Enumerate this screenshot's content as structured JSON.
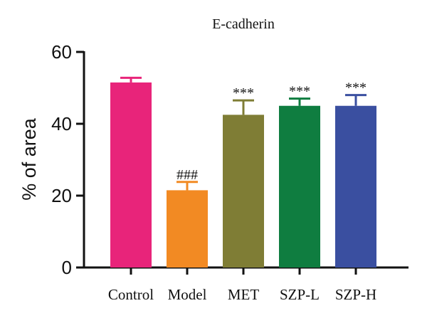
{
  "chart_data": {
    "type": "bar",
    "title": "E-cadherin",
    "xlabel": "",
    "ylabel": "% of area",
    "ylim": [
      0,
      60
    ],
    "yticks": [
      0,
      20,
      40,
      60
    ],
    "categories": [
      "Control",
      "Model",
      "MET",
      "SZP-L",
      "SZP-H"
    ],
    "values": [
      51.5,
      21.5,
      42.5,
      45,
      45
    ],
    "errors": [
      1.3,
      2.3,
      4,
      2,
      3
    ],
    "colors": [
      "#e8247a",
      "#f28a23",
      "#7f7d35",
      "#0f7d40",
      "#3a4fa0"
    ],
    "annotations": [
      "",
      "###",
      "***",
      "***",
      "***"
    ],
    "grid": false,
    "legend": "none"
  }
}
